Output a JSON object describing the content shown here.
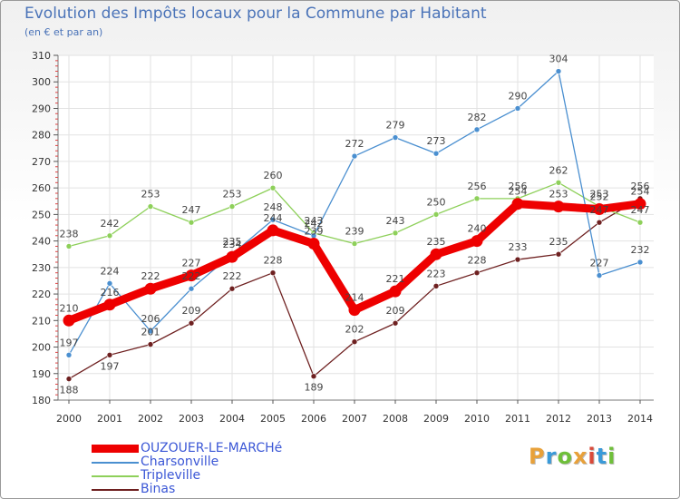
{
  "title": "Evolution des Impôts locaux pour la Commune par Habitant",
  "subtitle": "(en € et par an)",
  "logo": {
    "letters": [
      "P",
      "r",
      "o",
      "x",
      "i",
      "t",
      "i"
    ],
    "colors": [
      "#e8a13a",
      "#3a9ad9",
      "#6fbf3a",
      "#e8a13a",
      "#d94a3a",
      "#3a9ad9",
      "#6fbf3a"
    ]
  },
  "chart_data": {
    "type": "line",
    "x": [
      "2000",
      "2001",
      "2002",
      "2003",
      "2004",
      "2005",
      "2006",
      "2007",
      "2008",
      "2009",
      "2010",
      "2011",
      "2012",
      "2013",
      "2014"
    ],
    "ylim": [
      180,
      310
    ],
    "yticks": [
      "180",
      "190",
      "200",
      "210",
      "220",
      "230",
      "240",
      "250",
      "260",
      "270",
      "280",
      "290",
      "300",
      "310"
    ],
    "grid": true,
    "legend": "bottom-left",
    "series": [
      {
        "name": "OUZOUER-LE-MARCHé",
        "color": "#ee0000",
        "values": [
          210,
          216,
          222,
          227,
          234,
          244,
          239,
          214,
          221,
          235,
          240,
          254,
          253,
          252,
          254
        ]
      },
      {
        "name": "Charsonville",
        "color": "#4a8fd0",
        "values": [
          197,
          224,
          206,
          222,
          235,
          248,
          242,
          272,
          279,
          273,
          282,
          290,
          304,
          227,
          232
        ]
      },
      {
        "name": "Tripleville",
        "color": "#8ed05a",
        "values": [
          238,
          242,
          253,
          247,
          253,
          260,
          243,
          239,
          243,
          250,
          256,
          256,
          262,
          253,
          247
        ]
      },
      {
        "name": "Binas",
        "color": "#6e2020",
        "values": [
          188,
          197,
          201,
          209,
          222,
          228,
          189,
          202,
          209,
          223,
          228,
          233,
          235,
          247,
          256
        ]
      }
    ]
  }
}
